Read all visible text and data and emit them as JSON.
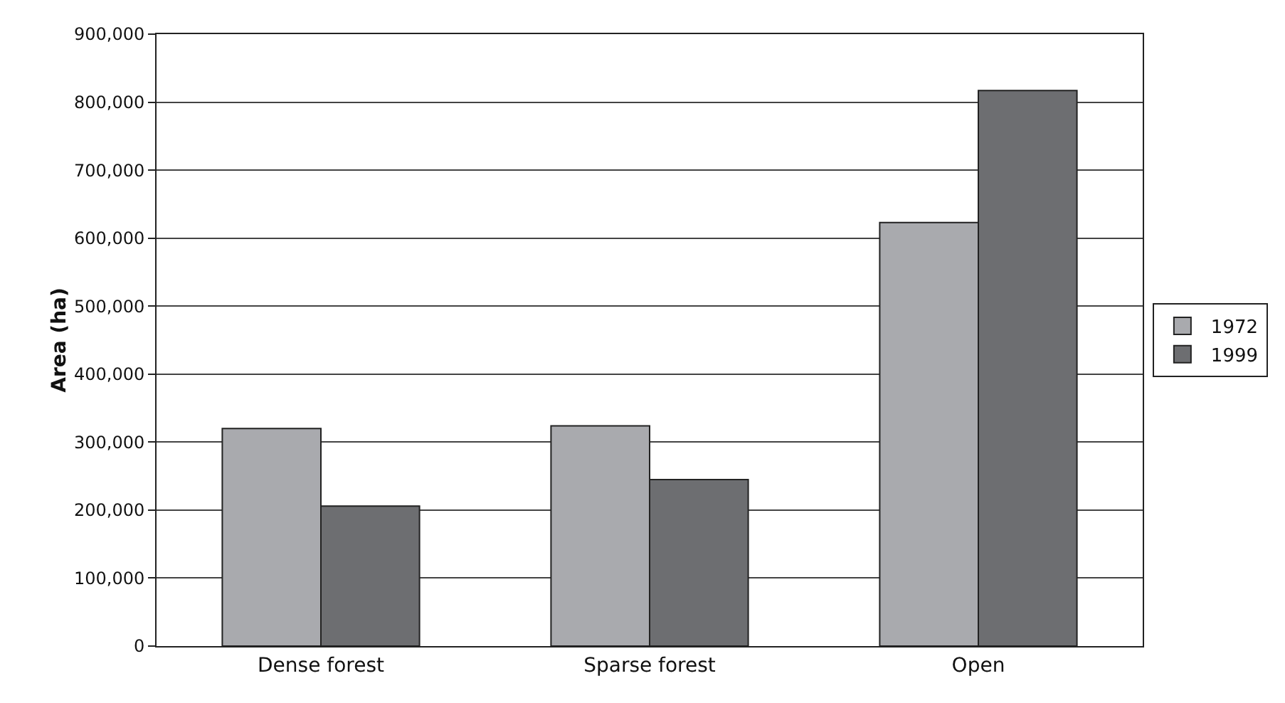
{
  "chart_data": {
    "type": "bar",
    "ylabel": "Area (ha)",
    "categories": [
      "Dense forest",
      "Sparse forest",
      "Open"
    ],
    "series": [
      {
        "name": "1972",
        "color": "#a9aaae",
        "values": [
          320000,
          324000,
          623000
        ]
      },
      {
        "name": "1999",
        "color": "#6d6e71",
        "values": [
          206000,
          245000,
          817000
        ]
      }
    ],
    "ylim": [
      0,
      900000
    ],
    "yticks": [
      {
        "value": 0,
        "label": "0"
      },
      {
        "value": 100000,
        "label": "100,000"
      },
      {
        "value": 200000,
        "label": "200,000"
      },
      {
        "value": 300000,
        "label": "300,000"
      },
      {
        "value": 400000,
        "label": "400,000"
      },
      {
        "value": 500000,
        "label": "500,000"
      },
      {
        "value": 600000,
        "label": "600,000"
      },
      {
        "value": 700000,
        "label": "700,000"
      },
      {
        "value": 800000,
        "label": "800,000"
      },
      {
        "value": 900000,
        "label": "900,000"
      }
    ],
    "grid": "y",
    "legend": "right"
  }
}
